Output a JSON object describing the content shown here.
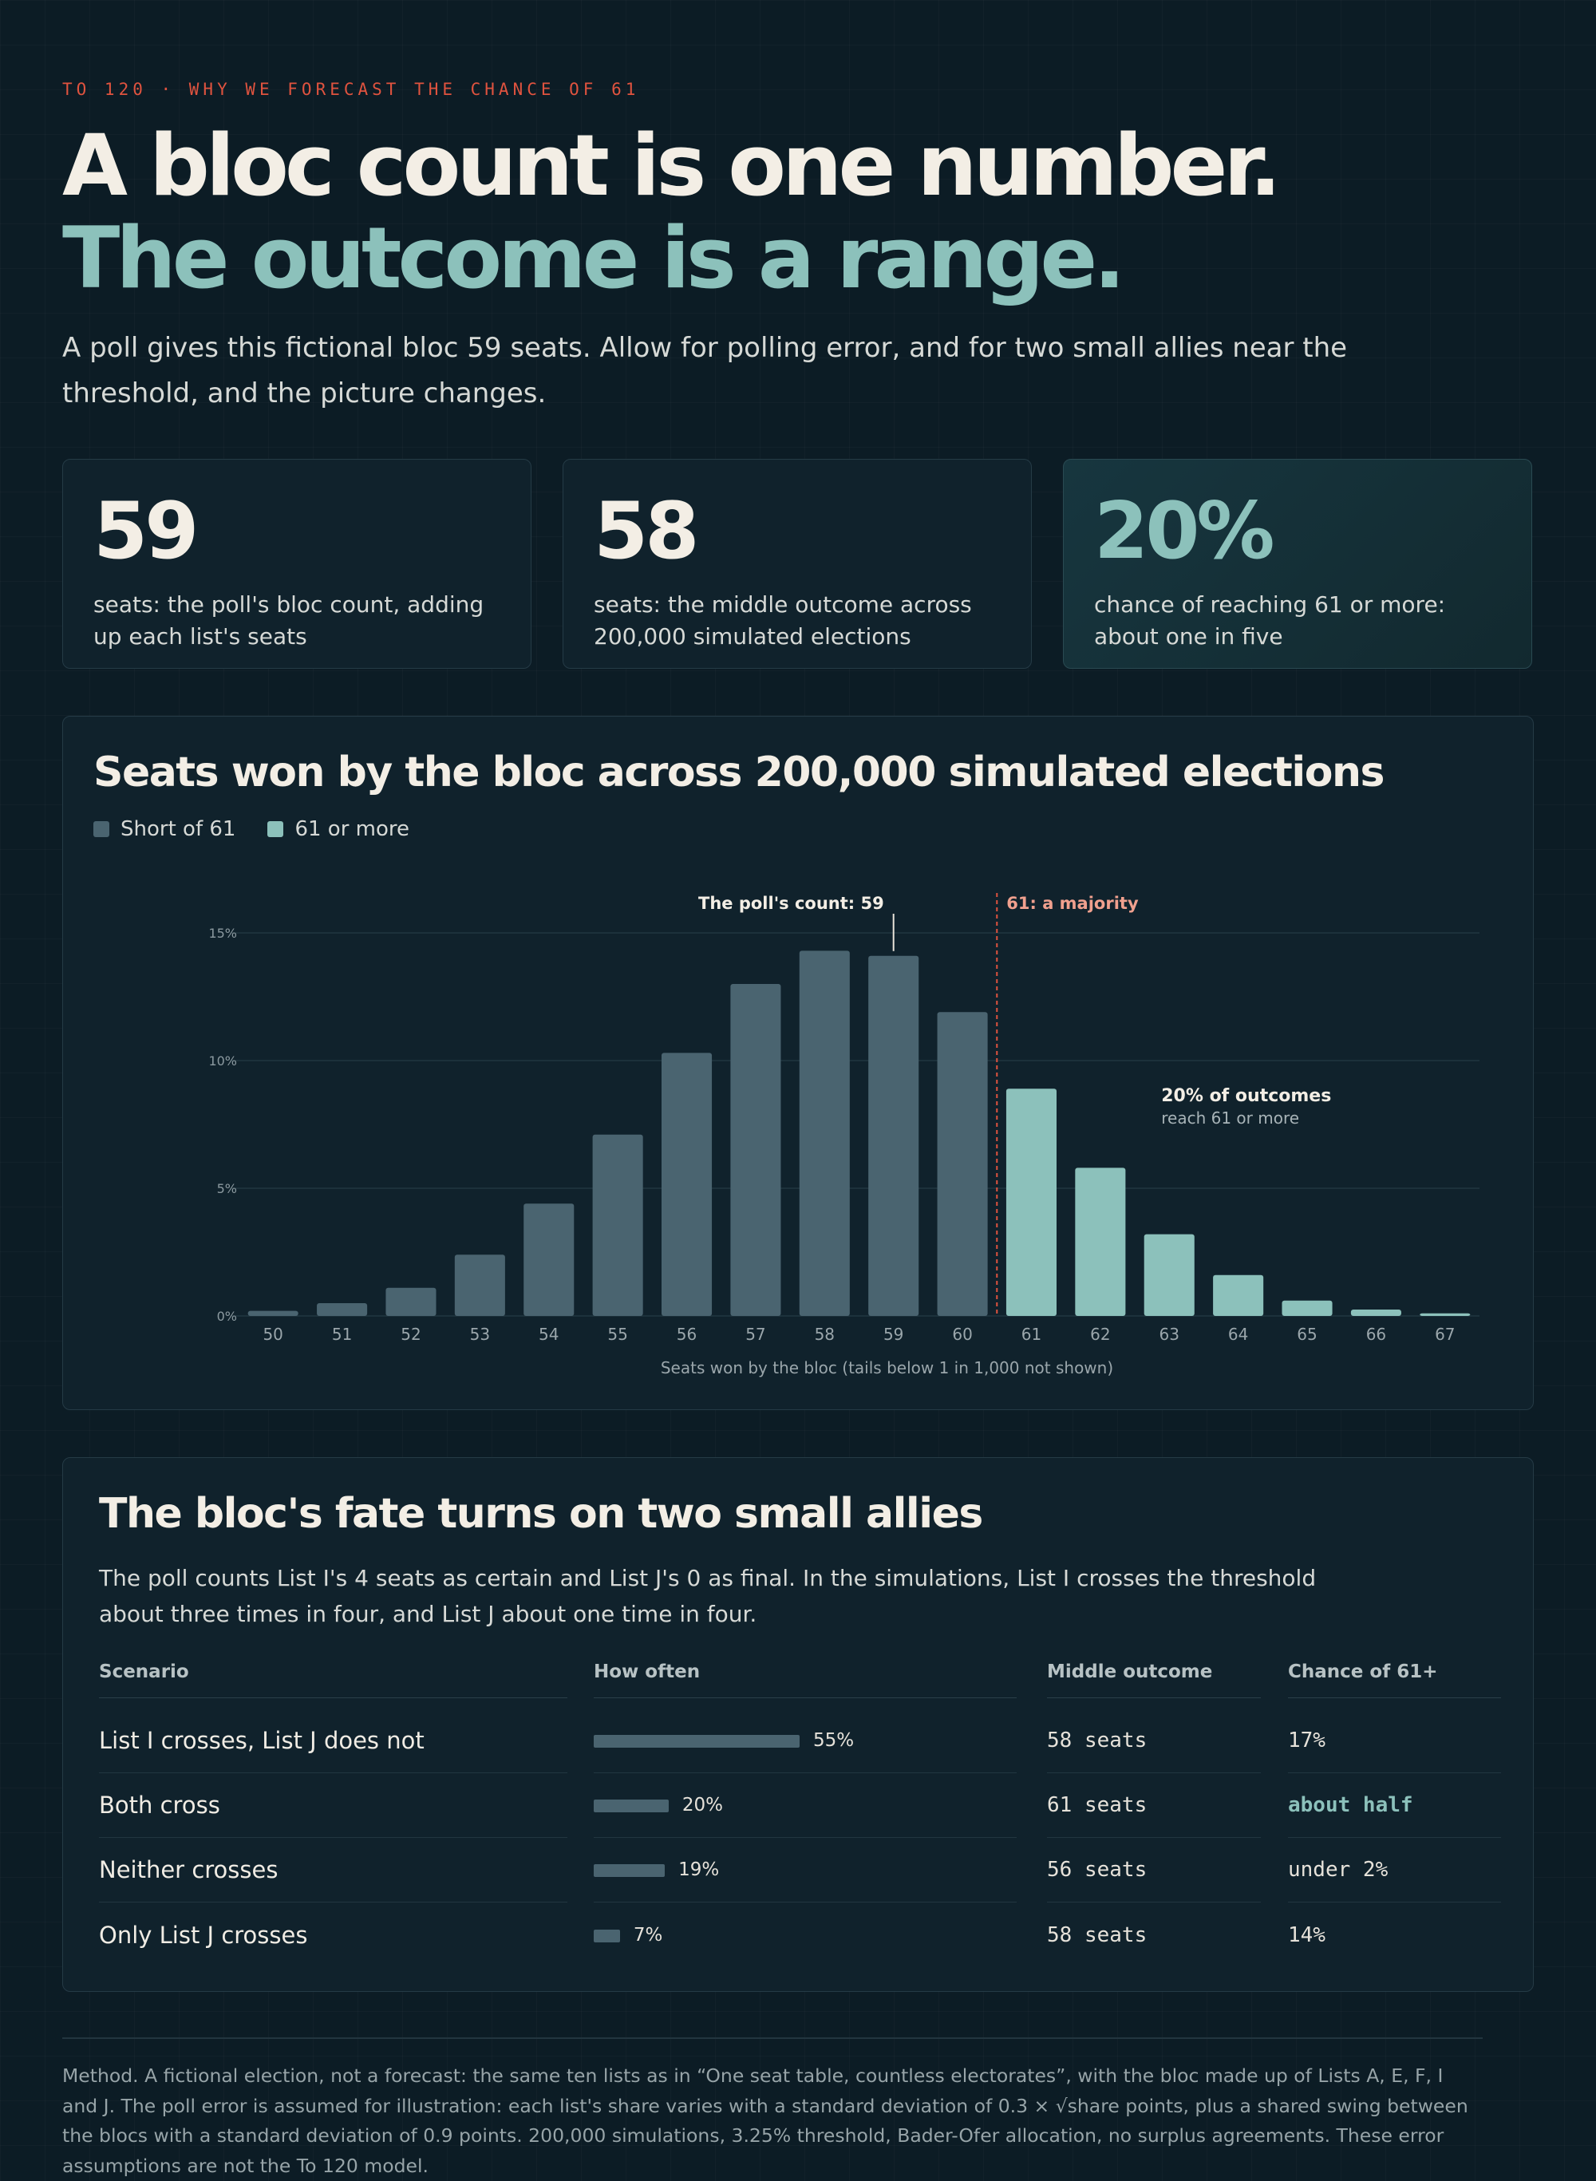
{
  "eyebrow": "TO 120 · WHY WE FORECAST THE CHANCE OF 61",
  "headline": {
    "line1": "A bloc count is one number.",
    "line2": "The outcome is a range."
  },
  "lede": "A poll gives this fictional bloc 59 seats. Allow for polling error, and for two small allies near the threshold, and the picture changes.",
  "stats": [
    {
      "value": "59",
      "desc": "seats: the poll's bloc count, adding up each list's seats"
    },
    {
      "value": "58",
      "desc": "seats: the middle outcome across 200,000 simulated elections"
    },
    {
      "value": "20%",
      "desc": "chance of reaching 61 or more: about one in five"
    }
  ],
  "colors": {
    "short": "#4a6470",
    "majority": "#8cc1bb",
    "threshold_line": "#e0533f",
    "majority_label": "#f0a08e"
  },
  "chart_data": {
    "type": "bar",
    "title": "Seats won by the bloc across 200,000 simulated elections",
    "xlabel": "Seats won by the bloc (tails below 1 in 1,000 not shown)",
    "ylabel": "",
    "ylim": [
      0,
      15
    ],
    "yticks": [
      0,
      5,
      10,
      15
    ],
    "ytick_labels": [
      "0%",
      "5%",
      "10%",
      "15%"
    ],
    "categories": [
      "50",
      "51",
      "52",
      "53",
      "54",
      "55",
      "56",
      "57",
      "58",
      "59",
      "60",
      "61",
      "62",
      "63",
      "64",
      "65",
      "66",
      "67"
    ],
    "series": [
      {
        "name": "Short of 61",
        "values": [
          0.2,
          0.5,
          1.1,
          2.4,
          4.4,
          7.1,
          10.3,
          13.0,
          14.3,
          14.1,
          11.9,
          null,
          null,
          null,
          null,
          null,
          null,
          null
        ]
      },
      {
        "name": "61 or more",
        "values": [
          null,
          null,
          null,
          null,
          null,
          null,
          null,
          null,
          null,
          null,
          null,
          8.9,
          5.8,
          3.2,
          1.6,
          0.6,
          0.25,
          0.1
        ]
      }
    ],
    "legend": "top-left",
    "grid": true,
    "annotations": {
      "poll_label": "The poll's count: 59",
      "poll_seat": "59",
      "majority_label": "61: a majority",
      "majority_seat": "61",
      "outcome_bold": "20% of outcomes",
      "outcome_sub": "reach 61 or more"
    }
  },
  "table": {
    "title": "The bloc's fate turns on two small allies",
    "intro": "The poll counts List I's 4 seats as certain and List J's 0 as final. In the simulations, List I crosses the threshold about three times in four, and List J about one time in four.",
    "headers": {
      "scenario": "Scenario",
      "how_often": "How often",
      "middle": "Middle outcome",
      "chance": "Chance of 61+"
    },
    "rows": [
      {
        "scenario": "List I crosses, List J does not",
        "how_often": 55,
        "how_often_label": "55%",
        "middle": "58 seats",
        "chance": "17%",
        "accent": false
      },
      {
        "scenario": "Both cross",
        "how_often": 20,
        "how_often_label": "20%",
        "middle": "61 seats",
        "chance": "about half",
        "accent": true
      },
      {
        "scenario": "Neither crosses",
        "how_often": 19,
        "how_often_label": "19%",
        "middle": "56 seats",
        "chance": "under 2%",
        "accent": false
      },
      {
        "scenario": "Only List J crosses",
        "how_often": 7,
        "how_often_label": "7%",
        "middle": "58 seats",
        "chance": "14%",
        "accent": false
      }
    ]
  },
  "method": "Method. A fictional election, not a forecast: the same ten lists as in “One seat table, countless electorates”, with the bloc made up of Lists A, E, F, I and J. The poll error is assumed for illustration: each list's share varies with a standard deviation of 0.3 × √share points, plus a shared swing between the blocs with a standard deviation of 0.9 points. 200,000 simulations, 3.25% threshold, Bader-Ofer allocation, no surplus agreements. These error assumptions are not the To 120 model."
}
